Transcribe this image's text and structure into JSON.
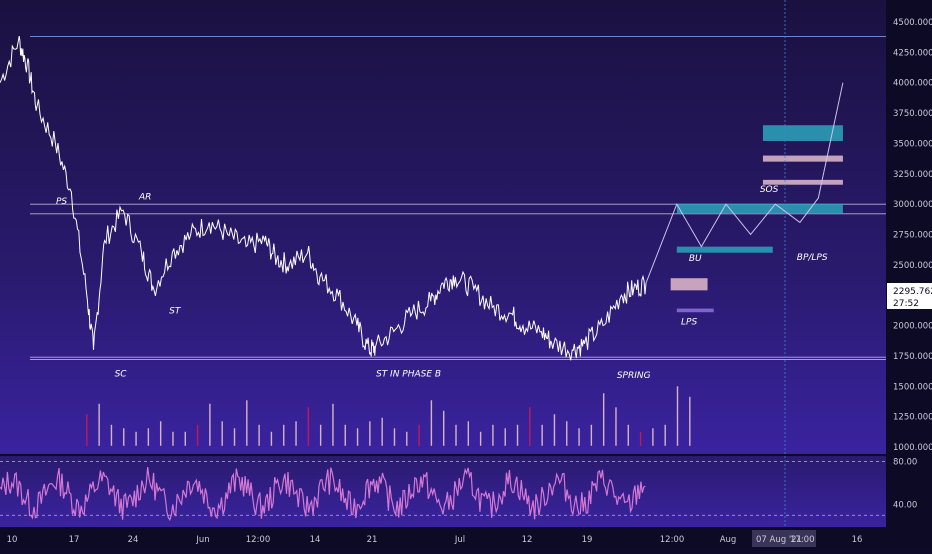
{
  "chart_data": {
    "type": "line",
    "title": "",
    "price_axis": {
      "min": 1000,
      "max": 4500,
      "ticks": [
        "4500.000",
        "4250.000",
        "4000.000",
        "3750.000",
        "3500.000",
        "3250.000",
        "3000.000",
        "2750.000",
        "2500.000",
        "2250.000",
        "2000.000",
        "1750.000",
        "1500.000",
        "1250.000",
        "1000.000"
      ]
    },
    "time_axis": {
      "ticks": [
        "10",
        "17",
        "24",
        "Jun",
        "12:00",
        "14",
        "21",
        "Jul",
        "12",
        "19",
        "12:00",
        "Aug",
        "16"
      ],
      "crosshair_date": "07 Aug '21",
      "crosshair_time": "17:00"
    },
    "current_price": {
      "value": "2295.762",
      "countdown": "27:52"
    },
    "series": [
      {
        "name": "",
        "kind": "price-line",
        "anchors": [
          [
            0,
            4000
          ],
          [
            1.5,
            4350
          ],
          [
            2.2,
            4150
          ],
          [
            3,
            3800
          ],
          [
            4.5,
            3500
          ],
          [
            5.8,
            3100
          ],
          [
            7,
            2300
          ],
          [
            7.6,
            1800
          ],
          [
            8.5,
            2700
          ],
          [
            10,
            2950
          ],
          [
            11.5,
            2600
          ],
          [
            12.5,
            2300
          ],
          [
            14,
            2600
          ],
          [
            15.5,
            2750
          ],
          [
            17,
            2850
          ],
          [
            18.5,
            2750
          ],
          [
            20,
            2650
          ],
          [
            21.5,
            2700
          ],
          [
            22.5,
            2550
          ],
          [
            23.5,
            2500
          ],
          [
            25,
            2600
          ],
          [
            26,
            2400
          ],
          [
            27.5,
            2250
          ],
          [
            29,
            2000
          ],
          [
            30,
            1800
          ],
          [
            30.5,
            1820
          ],
          [
            32,
            1950
          ],
          [
            33.5,
            2100
          ],
          [
            35,
            2200
          ],
          [
            36,
            2350
          ],
          [
            37,
            2400
          ],
          [
            38.5,
            2300
          ],
          [
            40,
            2150
          ],
          [
            41.5,
            2100
          ],
          [
            42.5,
            2000
          ],
          [
            44,
            1950
          ],
          [
            45,
            1850
          ],
          [
            46.5,
            1800
          ],
          [
            47.5,
            1850
          ],
          [
            49,
            2000
          ],
          [
            50.5,
            2250
          ],
          [
            51.5,
            2300
          ],
          [
            52.5,
            2350
          ]
        ]
      },
      {
        "name": "",
        "kind": "projection",
        "anchors": [
          [
            52.5,
            2350
          ],
          [
            55,
            3000
          ],
          [
            57,
            2650
          ],
          [
            59,
            3000
          ],
          [
            61,
            2750
          ],
          [
            63,
            3000
          ],
          [
            65,
            2850
          ],
          [
            66.5,
            3050
          ],
          [
            68.5,
            4000
          ]
        ]
      }
    ],
    "levels": [
      {
        "price": 4380,
        "style": "line",
        "color": "#7f93e6"
      },
      {
        "price": 3000,
        "style": "line",
        "color": "#b6b0d6"
      },
      {
        "price": 2920,
        "style": "line",
        "color": "#b6b0d6"
      },
      {
        "price": 1740,
        "style": "line",
        "color": "#b6b0d6"
      },
      {
        "price": 1720,
        "style": "line",
        "color": "#b6b0d6"
      }
    ],
    "zones": [
      {
        "from_x": 55,
        "to_x": 68.5,
        "low": 2920,
        "high": 3000,
        "color": "#2a9cb7"
      },
      {
        "from_x": 55,
        "to_x": 62.8,
        "low": 2600,
        "high": 2650,
        "color": "#2a9cb7"
      },
      {
        "from_x": 62,
        "to_x": 68.5,
        "low": 3520,
        "high": 3650,
        "color": "#2a9cb7"
      },
      {
        "from_x": 62,
        "to_x": 68.5,
        "low": 3350,
        "high": 3400,
        "color": "#d8b3c6"
      },
      {
        "from_x": 62,
        "to_x": 68.5,
        "low": 3160,
        "high": 3200,
        "color": "#d8b3c6"
      },
      {
        "from_x": 54.5,
        "to_x": 57.5,
        "low": 2290,
        "high": 2390,
        "color": "#d8b3c6"
      },
      {
        "from_x": 55,
        "to_x": 58,
        "low": 2110,
        "high": 2140,
        "color": "#8a6bd6"
      }
    ],
    "wyckoff_labels": [
      {
        "text": "PS",
        "x": 5,
        "price": 3000
      },
      {
        "text": "AR",
        "x": 11.8,
        "price": 3040
      },
      {
        "text": "SC",
        "x": 9.8,
        "price": 1580
      },
      {
        "text": "ST",
        "x": 14.2,
        "price": 2100
      },
      {
        "text": "ST IN PHASE B",
        "x": 33.2,
        "price": 1580
      },
      {
        "text": "BU",
        "x": 56.5,
        "price": 2530
      },
      {
        "text": "LPS",
        "x": 56,
        "price": 2010
      },
      {
        "text": "SPRING",
        "x": 51.5,
        "price": 1570
      },
      {
        "text": "SOS",
        "x": 62.5,
        "price": 3100
      },
      {
        "text": "BP/LPS",
        "x": 66,
        "price": 2540
      }
    ],
    "volume": {
      "baseline_price": 1010,
      "color": "#d8b3c6",
      "accent_color": "#c2185b",
      "bars": [
        [
          7,
          0.45
        ],
        [
          8,
          0.6
        ],
        [
          9,
          0.3
        ],
        [
          10,
          0.25
        ],
        [
          11,
          0.2
        ],
        [
          12,
          0.25
        ],
        [
          13,
          0.35
        ],
        [
          14,
          0.2
        ],
        [
          15,
          0.2
        ],
        [
          16,
          0.3
        ],
        [
          17,
          0.6
        ],
        [
          18,
          0.35
        ],
        [
          19,
          0.25
        ],
        [
          20,
          0.65
        ],
        [
          21,
          0.3
        ],
        [
          22,
          0.2
        ],
        [
          23,
          0.3
        ],
        [
          24,
          0.35
        ],
        [
          25,
          0.55
        ],
        [
          26,
          0.3
        ],
        [
          27,
          0.6
        ],
        [
          28,
          0.3
        ],
        [
          29,
          0.25
        ],
        [
          30,
          0.35
        ],
        [
          31,
          0.4
        ],
        [
          32,
          0.25
        ],
        [
          33,
          0.2
        ],
        [
          34,
          0.3
        ],
        [
          35,
          0.65
        ],
        [
          36,
          0.5
        ],
        [
          37,
          0.3
        ],
        [
          38,
          0.35
        ],
        [
          39,
          0.2
        ],
        [
          40,
          0.3
        ],
        [
          41,
          0.25
        ],
        [
          42,
          0.3
        ],
        [
          43,
          0.55
        ],
        [
          44,
          0.3
        ],
        [
          45,
          0.45
        ],
        [
          46,
          0.35
        ],
        [
          47,
          0.25
        ],
        [
          48,
          0.3
        ],
        [
          49,
          0.75
        ],
        [
          50,
          0.55
        ],
        [
          51,
          0.3
        ],
        [
          52,
          0.2
        ],
        [
          53,
          0.25
        ],
        [
          54,
          0.3
        ],
        [
          55,
          0.85
        ],
        [
          56,
          0.7
        ]
      ]
    },
    "oscillator": {
      "ticks": [
        "80.00",
        "40.00"
      ],
      "overbought": 80,
      "oversold": 30,
      "min": 20,
      "max": 85,
      "color": "#d478d4"
    }
  }
}
